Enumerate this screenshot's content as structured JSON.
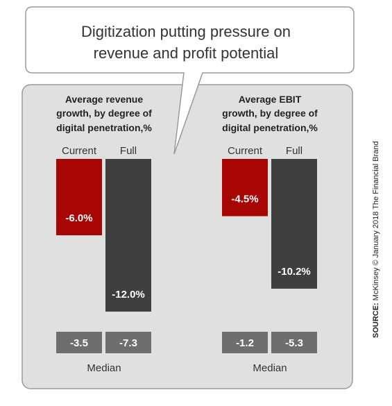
{
  "title": {
    "lines": [
      "Digitization putting pressure on",
      "revenue and profit potential"
    ]
  },
  "source": {
    "prefix": "SOURCE:",
    "text": " McKinsey © January 2018 The Financial Brand"
  },
  "colors": {
    "current": "#A80505",
    "full": "#3F3F3F",
    "median_box": "#6E6E6E",
    "panel": "#E0E0E0"
  },
  "chart_data": [
    {
      "type": "bar",
      "subtitle_lines": [
        "Average revenue",
        "growth, by degree of",
        "digital penetration,%"
      ],
      "categories": [
        "Current",
        "Full"
      ],
      "values": [
        -6.0,
        -12.0
      ],
      "value_labels": [
        "-6.0%",
        "-12.0%"
      ],
      "ylim": [
        -12.0,
        0
      ],
      "median_label": "Median",
      "medians": [
        "-3.5",
        "-7.3"
      ]
    },
    {
      "type": "bar",
      "subtitle_lines": [
        "Average EBIT",
        "growth, by degree of",
        "digital penetration,%"
      ],
      "categories": [
        "Current",
        "Full"
      ],
      "values": [
        -4.5,
        -10.2
      ],
      "value_labels": [
        "-4.5%",
        "-10.2%"
      ],
      "ylim": [
        -12.0,
        0
      ],
      "median_label": "Median",
      "medians": [
        "-1.2",
        "-5.3"
      ]
    }
  ]
}
